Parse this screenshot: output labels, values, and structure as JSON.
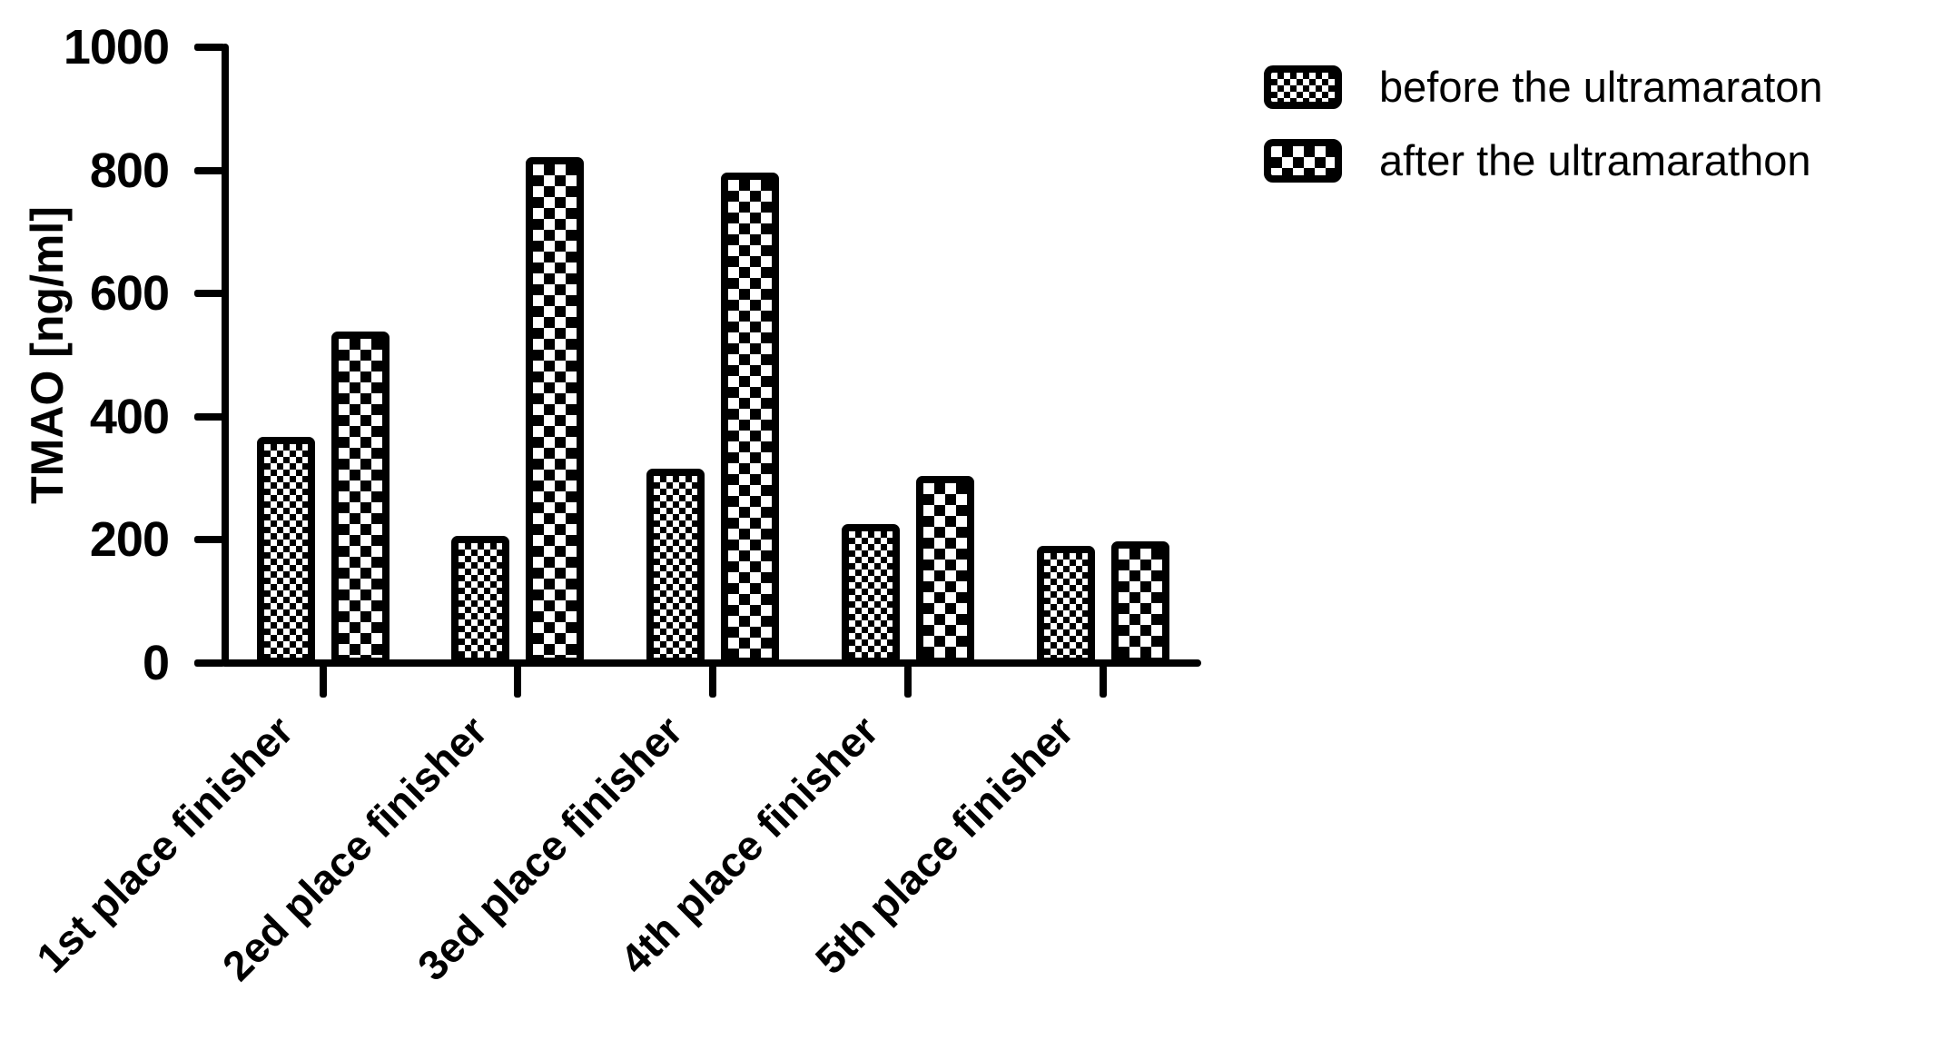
{
  "chart_data": {
    "type": "bar",
    "title": "",
    "xlabel": "",
    "ylabel": "TMAO [ng/ml]",
    "ylim": [
      0,
      1000
    ],
    "yticks": [
      0,
      200,
      400,
      600,
      800,
      1000
    ],
    "grid": false,
    "legend_position": "top-right",
    "bar_style": "black-bordered checkerboard patterns on white",
    "categories": [
      "1st place finisher",
      "2ed place finisher",
      "3ed place finisher",
      "4th place finisher",
      "5th place finisher"
    ],
    "series": [
      {
        "name": "before the ultramaraton",
        "swatch": "fine-checkerboard-swatch",
        "values": [
          370,
          210,
          318,
          228,
          193
        ]
      },
      {
        "name": "after the ultramarathon",
        "swatch": "coarse-checkerboard-swatch",
        "values": [
          542,
          825,
          800,
          307,
          200
        ]
      }
    ],
    "colors": {
      "foreground": "#000000",
      "background": "#ffffff"
    }
  }
}
